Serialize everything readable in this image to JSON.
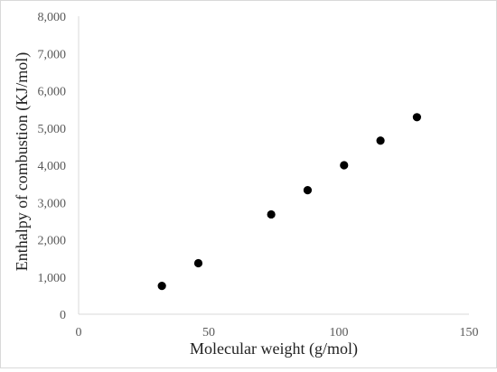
{
  "chart_data": {
    "type": "scatter",
    "title": "",
    "xlabel": "Molecular weight (g/mol)",
    "ylabel": "Enthalpy of combustion (KJ/mol)",
    "xlim": [
      0,
      150
    ],
    "ylim": [
      0,
      8000
    ],
    "x_ticks": [
      0,
      50,
      100,
      150
    ],
    "x_tick_labels": [
      "0",
      "50",
      "100",
      "150"
    ],
    "y_ticks": [
      0,
      1000,
      2000,
      3000,
      4000,
      5000,
      6000,
      7000,
      8000
    ],
    "y_tick_labels": [
      "0",
      "1,000",
      "2,000",
      "3,000",
      "4,000",
      "5,000",
      "6,000",
      "7,000",
      "8,000"
    ],
    "grid": false,
    "legend": "none",
    "marker_color": "#000000",
    "axis_color": "#d9d9d9",
    "series": [
      {
        "points": [
          {
            "x": 32,
            "y": 760
          },
          {
            "x": 46,
            "y": 1370
          },
          {
            "x": 74,
            "y": 2680
          },
          {
            "x": 88,
            "y": 3330
          },
          {
            "x": 102,
            "y": 4000
          },
          {
            "x": 116,
            "y": 4660
          },
          {
            "x": 130,
            "y": 5290
          }
        ]
      }
    ]
  }
}
